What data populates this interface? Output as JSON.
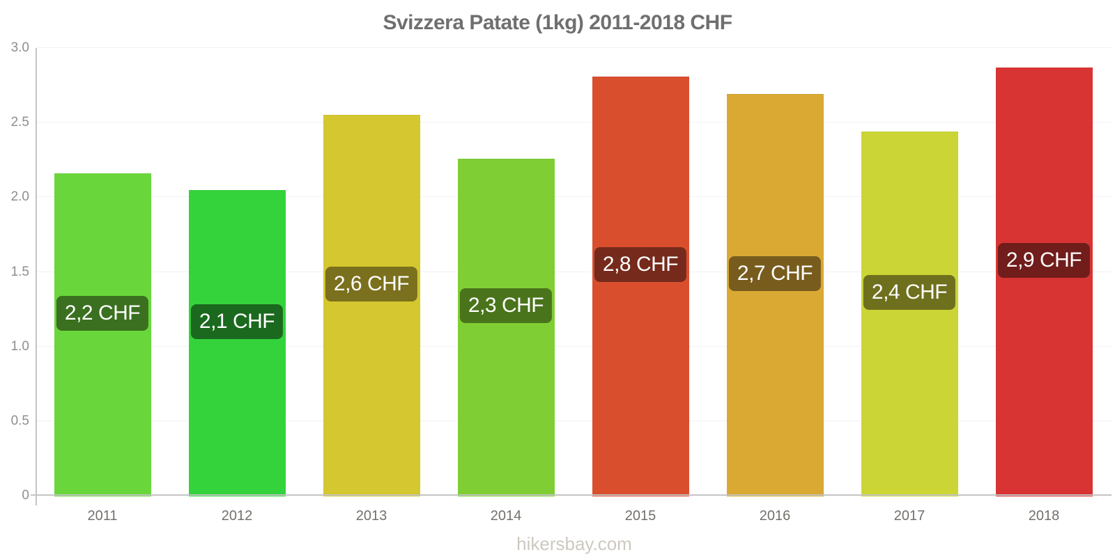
{
  "title": "Svizzera Patate (1kg) 2011-2018 CHF",
  "watermark": "hikersbay.com",
  "chart_data": {
    "type": "bar",
    "title": "Svizzera Patate (1kg) 2011-2018 CHF",
    "currency": "CHF",
    "categories": [
      "2011",
      "2012",
      "2013",
      "2014",
      "2015",
      "2016",
      "2017",
      "2018"
    ],
    "values": [
      2.16,
      2.05,
      2.55,
      2.26,
      2.81,
      2.69,
      2.44,
      2.87
    ],
    "bar_labels": [
      "2,2 CHF",
      "2,1 CHF",
      "2,6 CHF",
      "2,3 CHF",
      "2,8 CHF",
      "2,7 CHF",
      "2,4 CHF",
      "2,9 CHF"
    ],
    "bar_colors": [
      "#69d73c",
      "#34d33c",
      "#d4c72f",
      "#7fce33",
      "#d94f2e",
      "#daa933",
      "#cbd535",
      "#d83434"
    ],
    "label_bg_colors": [
      "#3a701f",
      "#1b691e",
      "#7a701d",
      "#4a741c",
      "#752a1c",
      "#775c1e",
      "#6f701e",
      "#701d1b"
    ],
    "xlabel": "",
    "ylabel": "",
    "ylim": [
      0,
      3.0
    ],
    "y_tick_values": [
      0,
      0.5,
      1.0,
      1.5,
      2.0,
      2.5,
      3.0
    ],
    "y_tick_labels": [
      "0",
      "0.5",
      "1.0",
      "1.5",
      "2.0",
      "2.5",
      "3.0"
    ],
    "grid": "horizontal",
    "legend": "none"
  },
  "colors": {
    "axis": "#c4c4c4",
    "gridline": "#f2f2f2",
    "title_text": "#6f6f6f",
    "y_tick_text": "#8e8e8e",
    "x_tick_text": "#73706c",
    "value_label_text": "#ffffff",
    "watermark_text": "#cdc9c1"
  }
}
